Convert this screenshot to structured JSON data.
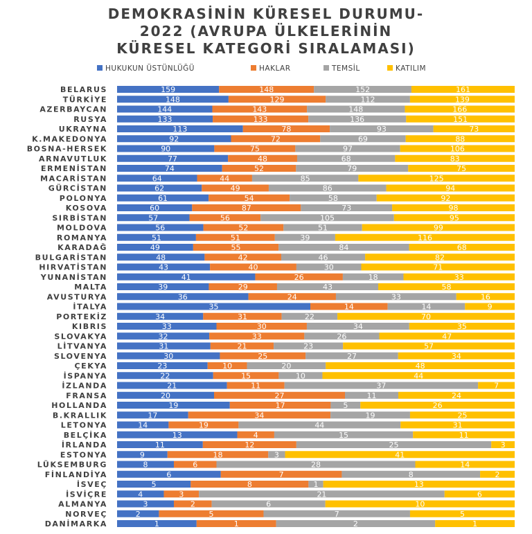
{
  "chart_data": {
    "type": "bar",
    "orientation": "horizontal",
    "stacked": "100%",
    "title": [
      "DEMOKRASİNİN KÜRESEL DURUMU-",
      "2022 (AVRUPA ÜLKELERİNİN",
      "KÜRESEL KATEGORİ SIRALAMASI)"
    ],
    "legend_position": "top",
    "categories": [
      "BELARUS",
      "TÜRKİYE",
      "AZERBAYCAN",
      "RUSYA",
      "UKRAYNA",
      "K.MAKEDONYA",
      "BOSNA-HERSEK",
      "ARNAVUTLUK",
      "ERMENİSTAN",
      "MACARİSTAN",
      "GÜRCİSTAN",
      "POLONYA",
      "KOSOVA",
      "SIRBİSTAN",
      "MOLDOVA",
      "ROMANYA",
      "KARADAĞ",
      "BULGARİSTAN",
      "HIRVATİSTAN",
      "YUNANİSTAN",
      "MALTA",
      "AVUSTURYA",
      "İTALYA",
      "PORTEKİZ",
      "KIBRIS",
      "SLOVAKYA",
      "LİTVANYA",
      "SLOVENYA",
      "ÇEKYA",
      "İSPANYA",
      "İZLANDA",
      "FRANSA",
      "HOLLANDA",
      "B.KRALLIK",
      "LETONYA",
      "BELÇİKA",
      "İRLANDA",
      "ESTONYA",
      "LÜKSEMBURG",
      "FİNLANDİYA",
      "İSVEÇ",
      "İSVİÇRE",
      "ALMANYA",
      "NORVEÇ",
      "DANİMARKA"
    ],
    "series": [
      {
        "name": "HUKUKUN ÜSTÜNLÜĞÜ",
        "color": "#4472C4",
        "values": [
          159,
          148,
          144,
          133,
          113,
          92,
          90,
          77,
          74,
          64,
          62,
          61,
          60,
          57,
          56,
          51,
          49,
          48,
          43,
          41,
          39,
          36,
          35,
          34,
          33,
          32,
          31,
          30,
          23,
          22,
          21,
          20,
          19,
          17,
          14,
          13,
          11,
          9,
          8,
          6,
          5,
          4,
          3,
          2,
          1
        ]
      },
      {
        "name": "HAKLAR",
        "color": "#ED7D31",
        "values": [
          148,
          129,
          143,
          133,
          78,
          72,
          75,
          48,
          52,
          44,
          49,
          54,
          87,
          56,
          52,
          51,
          55,
          42,
          40,
          26,
          29,
          24,
          14,
          31,
          30,
          33,
          21,
          25,
          10,
          15,
          11,
          27,
          17,
          34,
          19,
          4,
          12,
          18,
          6,
          7,
          8,
          3,
          2,
          5,
          1
        ]
      },
      {
        "name": "TEMSİL",
        "color": "#A5A5A5",
        "values": [
          152,
          112,
          148,
          136,
          93,
          69,
          97,
          68,
          79,
          85,
          86,
          58,
          73,
          105,
          51,
          39,
          84,
          46,
          30,
          18,
          43,
          33,
          14,
          22,
          34,
          26,
          23,
          27,
          20,
          10,
          37,
          11,
          5,
          19,
          44,
          15,
          25,
          3,
          28,
          8,
          1,
          21,
          6,
          7,
          2
        ]
      },
      {
        "name": "KATILIM",
        "color": "#FFC000",
        "values": [
          161,
          139,
          166,
          151,
          73,
          88,
          106,
          83,
          75,
          125,
          94,
          92,
          98,
          95,
          99,
          116,
          68,
          82,
          71,
          33,
          58,
          16,
          9,
          70,
          35,
          47,
          57,
          34,
          48,
          44,
          7,
          24,
          26,
          25,
          31,
          11,
          3,
          41,
          14,
          2,
          13,
          6,
          10,
          5,
          1
        ]
      }
    ]
  }
}
